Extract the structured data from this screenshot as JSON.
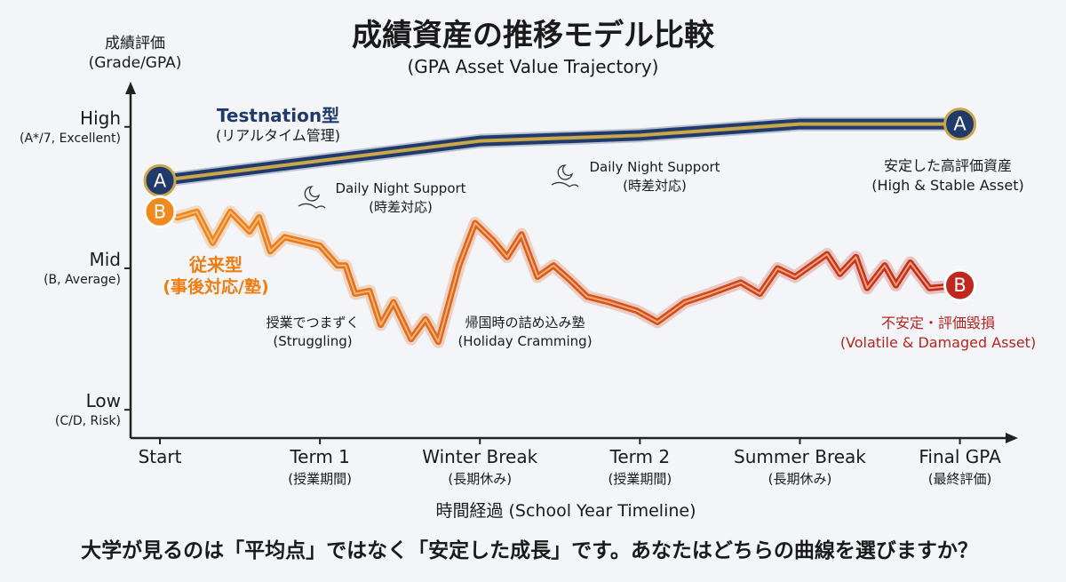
{
  "chart_data": {
    "type": "line",
    "title": "成績資産の推移モデル比較",
    "subtitle": "(GPA Asset Value Trajectory)",
    "y_label": "成績評価\n(Grade/GPA)",
    "x_label": "時間経過 (School Year Timeline)",
    "footer": "大学が見るのは「平均点」ではなく「安定した成長」です。あなたはどちらの曲線を選びますか？",
    "xlim": [
      -0.2,
      5.33
    ],
    "xticks": [
      {
        "value": 0,
        "label": "Start"
      },
      {
        "value": 1,
        "label": "Term 1\n(授業期間)"
      },
      {
        "value": 2,
        "label": "Winter Break\n(長期休み)"
      },
      {
        "value": 3,
        "label": "Term 2\n(授業期間)"
      },
      {
        "value": 4,
        "label": "Summer Break\n(長期休み)"
      },
      {
        "value": 5,
        "label": "Final GPA\n(最終評価)"
      }
    ],
    "ylim": [
      -10,
      115
    ],
    "yticks": [
      {
        "value": 100,
        "label": "High\n(A*/7, Excellent)"
      },
      {
        "value": 50,
        "label": "Mid\n(B, Average)"
      },
      {
        "value": 0,
        "label": "Low\n(C/D, Risk)"
      }
    ],
    "series": [
      {
        "name": "Testnation型",
        "note": "(リアルタイム管理)",
        "color": "#1f3a6b",
        "accent": "#c9a74a",
        "marker_label": "A",
        "x": [
          0,
          1,
          2,
          3,
          4,
          5
        ],
        "values": [
          81,
          88,
          95,
          97,
          101,
          101
        ]
      },
      {
        "name": "従来型",
        "note": "(事後対応/塾)",
        "color": "#f08a1c",
        "end_color": "#c0281f",
        "marker_label": "B",
        "x": [
          0,
          0.11,
          0.23,
          0.33,
          0.44,
          0.56,
          0.62,
          0.69,
          0.78,
          1.0,
          1.11,
          1.16,
          1.22,
          1.31,
          1.38,
          1.46,
          1.57,
          1.66,
          1.74,
          1.87,
          1.97,
          2.08,
          2.17,
          2.26,
          2.36,
          2.46,
          2.56,
          2.67,
          2.81,
          2.98,
          3.11,
          3.28,
          3.44,
          3.63,
          3.75,
          3.86,
          3.97,
          4.17,
          4.25,
          4.35,
          4.42,
          4.53,
          4.6,
          4.69,
          4.81,
          5
        ],
        "values": [
          70,
          68,
          70,
          59,
          70,
          63,
          68,
          56,
          61,
          58,
          51,
          51,
          41,
          42,
          30,
          38,
          25,
          32,
          24,
          51,
          66,
          60,
          54,
          62,
          47,
          51,
          46,
          40,
          38,
          35,
          31,
          38,
          41,
          45,
          41,
          50,
          47,
          55,
          48,
          54,
          43,
          51,
          44,
          52,
          43,
          44
        ]
      }
    ],
    "annotations": [
      "Daily Night Support\n(時差対応)",
      "Daily Night Support\n(時差対応)",
      "授業でつまずく\n(Struggling)",
      "帰国時の詰め込み塾\n(Holiday Cramming)",
      "安定した高評価資産\n(High & Stable Asset)",
      "不安定・評価毀損\n(Volatile & Damaged Asset)"
    ]
  }
}
